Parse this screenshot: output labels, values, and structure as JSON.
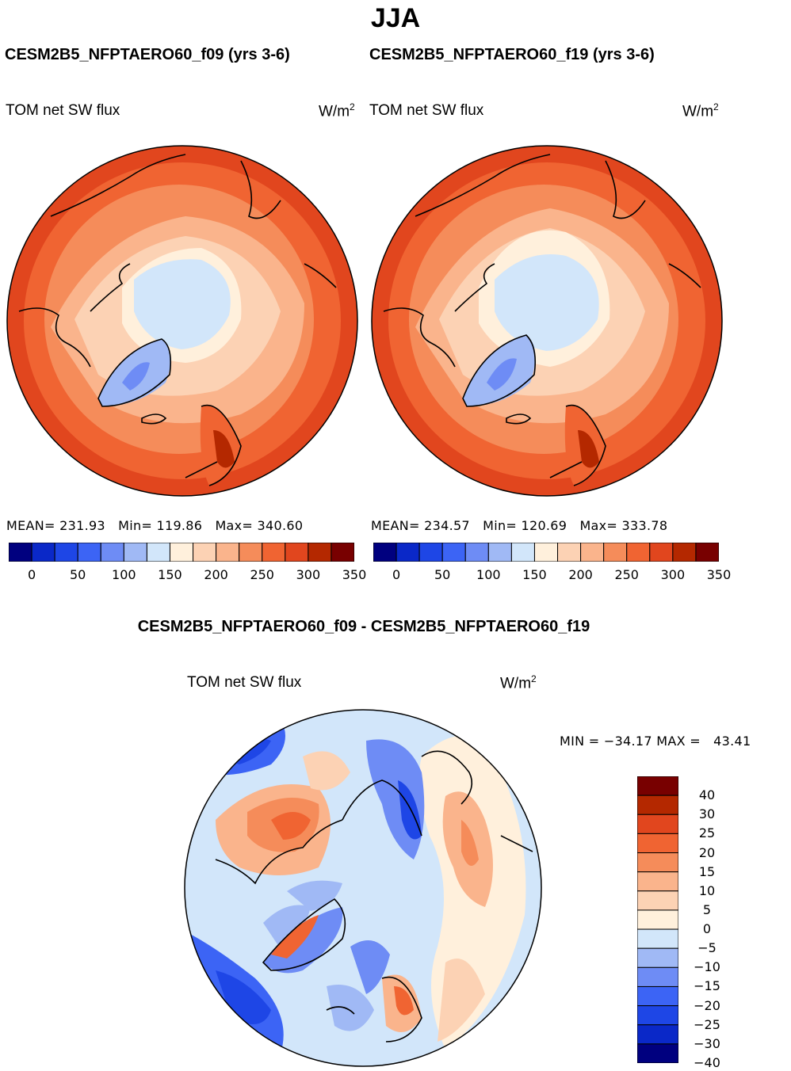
{
  "season": "JJA",
  "panels": [
    {
      "id": "f09",
      "run_title": "CESM2B5_NFPTAERO60_f09 (yrs 3-6)",
      "variable": "TOM net SW flux",
      "units_base": "W/m",
      "units_exp": "2",
      "stats": {
        "mean_label": "MEAN=",
        "mean": "231.93",
        "min_label": "Min=",
        "min": "119.86",
        "max_label": "Max=",
        "max": "340.60"
      }
    },
    {
      "id": "f19",
      "run_title": "CESM2B5_NFPTAERO60_f19 (yrs 3-6)",
      "variable": "TOM net SW flux",
      "units_base": "W/m",
      "units_exp": "2",
      "stats": {
        "mean_label": "MEAN=",
        "mean": "234.57",
        "min_label": "Min=",
        "min": "120.69",
        "max_label": "Max=",
        "max": "333.78"
      }
    }
  ],
  "abs_colorbar": {
    "colors": [
      "#00007f",
      "#0a28c8",
      "#1e46e6",
      "#3c64f5",
      "#6e8cf5",
      "#a0b9f5",
      "#d2e6fa",
      "#fff0dc",
      "#fcd2b4",
      "#fab48c",
      "#f58c5a",
      "#f06432",
      "#e1461e",
      "#b42800",
      "#780000"
    ],
    "tick_labels": [
      "0",
      "50",
      "100",
      "150",
      "200",
      "250",
      "300",
      "350"
    ]
  },
  "diff_panel": {
    "title": "CESM2B5_NFPTAERO60_f09 - CESM2B5_NFPTAERO60_f19",
    "variable": "TOM net SW flux",
    "units_base": "W/m",
    "units_exp": "2",
    "min_label": "MIN =",
    "min": "−34.17",
    "max_label": "MAX =",
    "max": "43.41"
  },
  "diff_colorbar": {
    "colors": [
      "#780000",
      "#b42800",
      "#e1461e",
      "#f06432",
      "#f58c5a",
      "#fab48c",
      "#fcd2b4",
      "#fff0dc",
      "#d2e6fa",
      "#a0b9f5",
      "#6e8cf5",
      "#3c64f5",
      "#1e46e6",
      "#0a28c8",
      "#00007f"
    ],
    "tick_labels": [
      "40",
      "30",
      "25",
      "20",
      "15",
      "10",
      "5",
      "0",
      "−5",
      "−10",
      "−15",
      "−20",
      "−25",
      "−30",
      "−40"
    ]
  },
  "colors": {
    "ocean_high": "#e1461e",
    "sea_ice_low": "#d2e6fa",
    "greenland_low": "#a0b9f5",
    "coast": "#000000"
  }
}
